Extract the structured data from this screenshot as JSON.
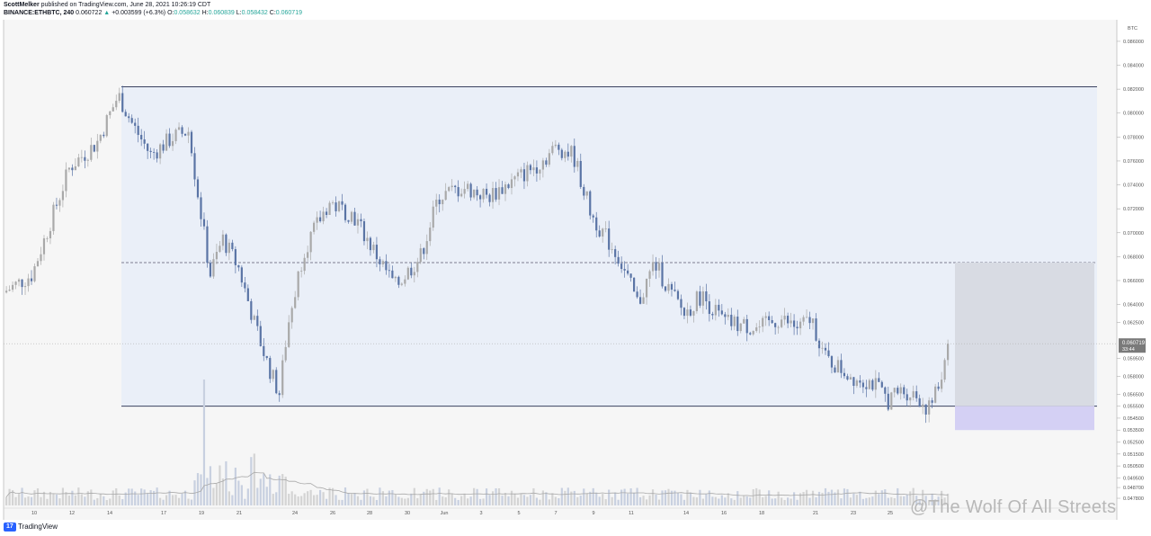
{
  "header": {
    "author": "ScottMelker",
    "published_text": "published on TradingView.com, June 28, 2021 10:26:19 CDT",
    "symbol": "BINANCE:ETHBTC, 240",
    "last": "0.060722",
    "change": "+0.003599 (+6.3%)",
    "o_label": "O:",
    "o_value": "0.058632",
    "h_label": "H:",
    "h_value": "0.060839",
    "l_label": "L:",
    "l_value": "0.058432",
    "c_label": "C:",
    "c_value": "0.060719"
  },
  "footer": {
    "brand": "TradingView",
    "watermark": "@The Wolf Of All Streets"
  },
  "chart_data": {
    "type": "candlestick",
    "title": "",
    "y_unit": "BTC",
    "ylim": [
      0.04645,
      0.0878
    ],
    "y_ticks": [
      "0.086000",
      "0.084000",
      "0.082000",
      "0.080000",
      "0.078000",
      "0.076000",
      "0.074000",
      "0.072000",
      "0.070000",
      "0.068000",
      "0.066000",
      "0.064000",
      "0.062500",
      "0.059500",
      "0.058000",
      "0.056500",
      "0.055500",
      "0.054500",
      "0.053500",
      "0.052500",
      "0.051500",
      "0.050500",
      "0.049500",
      "0.048700",
      "0.047800"
    ],
    "current_price": "0.060719",
    "countdown": "33:44",
    "x_labels": [
      "10",
      "12",
      "14",
      "17",
      "19",
      "21",
      "24",
      "26",
      "28",
      "30",
      "Jun",
      "3",
      "5",
      "7",
      "9",
      "11",
      "14",
      "16",
      "18",
      "21",
      "23",
      "25"
    ],
    "ohlc_keyframes": [
      {
        "at": "10",
        "close": 0.0665
      },
      {
        "at": "12",
        "close": 0.0755
      },
      {
        "at": "14",
        "close": 0.0815
      },
      {
        "at": "17",
        "close": 0.0765
      },
      {
        "at": "18",
        "close": 0.0785
      },
      {
        "at": "19",
        "close": 0.0725
      },
      {
        "at": "20",
        "close": 0.0665
      },
      {
        "at": "21",
        "close": 0.0695
      },
      {
        "at": "22",
        "close": 0.0625
      },
      {
        "at": "23",
        "close": 0.0565
      },
      {
        "at": "24",
        "close": 0.0685
      },
      {
        "at": "26",
        "close": 0.0725
      },
      {
        "at": "28",
        "close": 0.0685
      },
      {
        "at": "29",
        "close": 0.0655
      },
      {
        "at": "31",
        "close": 0.073
      },
      {
        "at": "Jun 4",
        "close": 0.0735
      },
      {
        "at": "Jun 6",
        "close": 0.0755
      },
      {
        "at": "Jun 7",
        "close": 0.0772
      },
      {
        "at": "Jun 9",
        "close": 0.0715
      },
      {
        "at": "Jun 10",
        "close": 0.0655
      },
      {
        "at": "Jun 12",
        "close": 0.0675
      },
      {
        "at": "Jun 13",
        "close": 0.0635
      },
      {
        "at": "Jun 15",
        "close": 0.0625
      },
      {
        "at": "Jun 18",
        "close": 0.062
      },
      {
        "at": "Jun 20",
        "close": 0.0625
      },
      {
        "at": "Jun 22",
        "close": 0.0595
      },
      {
        "at": "Jun 23",
        "close": 0.058
      },
      {
        "at": "Jun 25",
        "close": 0.056
      },
      {
        "at": "Jun 26",
        "close": 0.0552
      },
      {
        "at": "Jun 27",
        "close": 0.0575
      },
      {
        "at": "Jun 28",
        "close": 0.060719
      }
    ],
    "annotations": {
      "range_top": 0.0822,
      "range_bottom": 0.0555,
      "dashed_midline": 0.0675,
      "position_target": 0.0675,
      "position_stop": 0.0535
    },
    "grid": false
  }
}
